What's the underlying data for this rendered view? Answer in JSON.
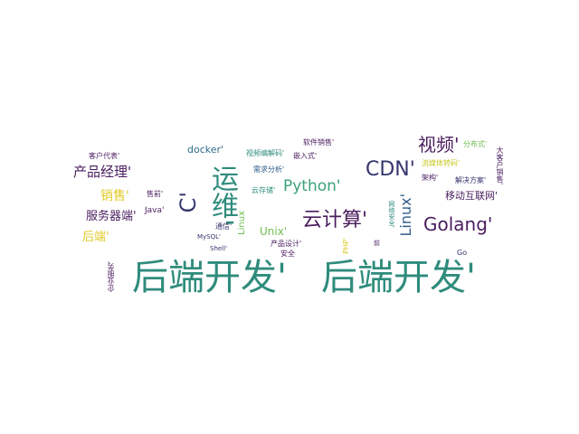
{
  "wordcloud": {
    "words": [
      {
        "text": "后端开发'",
        "color": "#2f8c7c"
      },
      {
        "text": "后端开发'",
        "color": "#2f8c7c"
      },
      {
        "text": "运维'",
        "color": "#2f8c7c"
      },
      {
        "text": "C'",
        "color": "#35356f"
      },
      {
        "text": "CDN'",
        "color": "#35356f"
      },
      {
        "text": "视频'",
        "color": "#4a1d5f"
      },
      {
        "text": "云计算'",
        "color": "#4a1d5f"
      },
      {
        "text": "Golang'",
        "color": "#4a1d5f"
      },
      {
        "text": "Python'",
        "color": "#3aa276"
      },
      {
        "text": "Linux'",
        "color": "#2f5c8a"
      },
      {
        "text": "产品经理'",
        "color": "#4a1d5f"
      },
      {
        "text": "销售'",
        "color": "#e0c926"
      },
      {
        "text": "服务器端'",
        "color": "#4a1d5f"
      },
      {
        "text": "后端'",
        "color": "#e0c926"
      },
      {
        "text": "移动互联网'",
        "color": "#4a1d5f"
      },
      {
        "text": "Unix'",
        "color": "#6fbf4f"
      },
      {
        "text": "docker'",
        "color": "#2f6c8a"
      },
      {
        "text": "Linux",
        "color": "#6fbf4f"
      },
      {
        "text": "客户代表'",
        "color": "#4a1d5f"
      },
      {
        "text": "视频编解码'",
        "color": "#2f8c7c"
      },
      {
        "text": "嵌入式'",
        "color": "#4a1d5f"
      },
      {
        "text": "软件销售'",
        "color": "#4a1d5f"
      },
      {
        "text": "需求分析'",
        "color": "#2f5c8a"
      },
      {
        "text": "云存储'",
        "color": "#2f8c7c"
      },
      {
        "text": "流媒体转码'",
        "color": "#c8c822"
      },
      {
        "text": "分布式'",
        "color": "#6fbf4f"
      },
      {
        "text": "架构'",
        "color": "#4a1d5f"
      },
      {
        "text": "解决方案'",
        "color": "#35356f"
      },
      {
        "text": "大客户销售'",
        "color": "#4a1d5f"
      },
      {
        "text": "Java'",
        "color": "#4a1d5f"
      },
      {
        "text": "售前'",
        "color": "#4a1d5f"
      },
      {
        "text": "通信'",
        "color": "#35356f"
      },
      {
        "text": "MySQL'",
        "color": "#35356f"
      },
      {
        "text": "Shell'",
        "color": "#35356f"
      },
      {
        "text": "产品设计'",
        "color": "#4a1d5f"
      },
      {
        "text": "安全",
        "color": "#4a1d5f"
      },
      {
        "text": "PHP'",
        "color": "#e0c926"
      },
      {
        "text": "网络安全'",
        "color": "#2f8c7c"
      },
      {
        "text": "Go",
        "color": "#35356f"
      },
      {
        "text": "企业服务'",
        "color": "#4a1d5f"
      },
      {
        "text": "前",
        "color": "#4a1d5f"
      }
    ]
  }
}
